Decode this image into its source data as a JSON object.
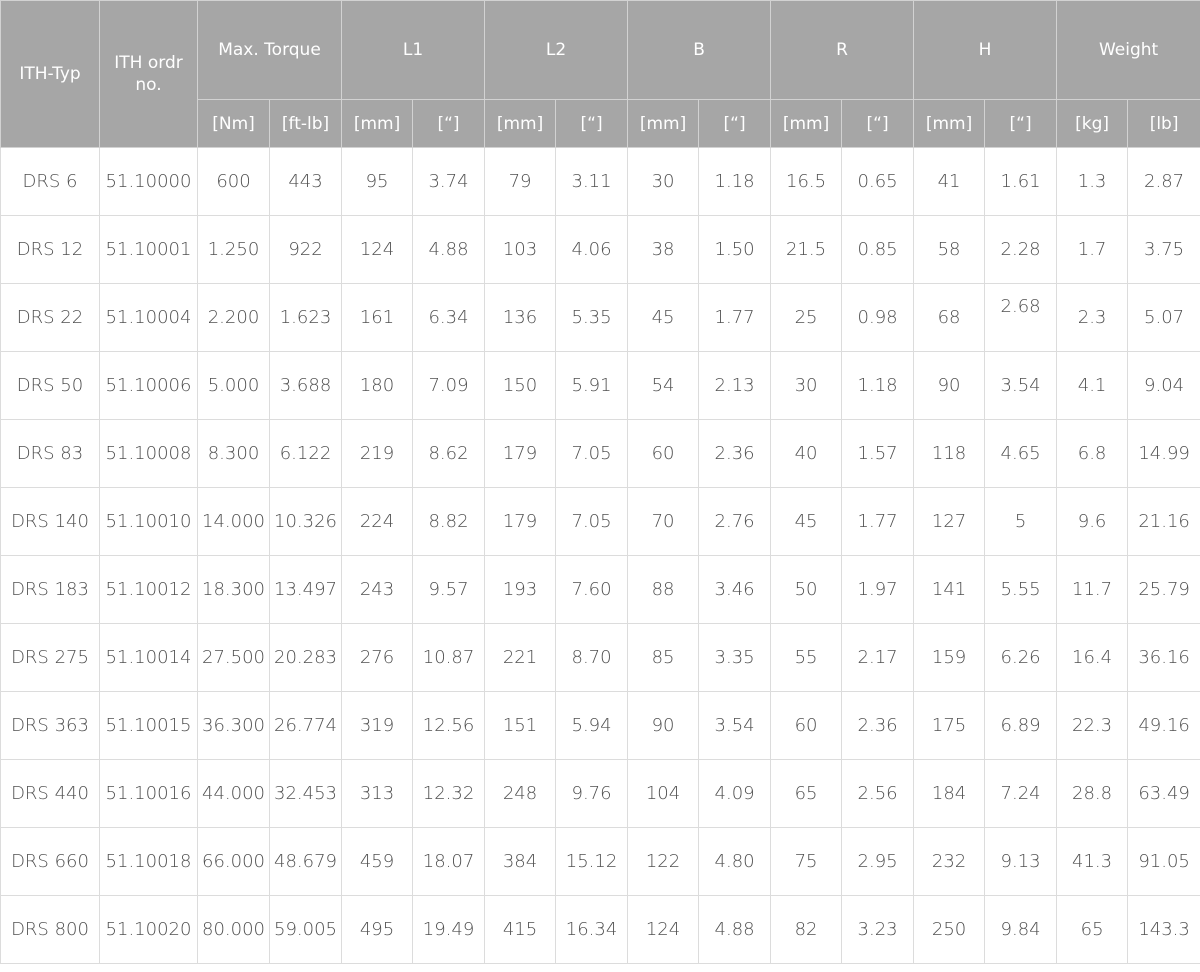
{
  "headers": {
    "ith_typ": "ITH-Typ",
    "ith_order": "ITH ordr no.",
    "max_torque": "Max. Torque",
    "l1": "L1",
    "l2": "L2",
    "b": "B",
    "r": "R",
    "h": "H",
    "weight": "Weight"
  },
  "units": [
    "[Nm]",
    "[ft-lb]",
    "[mm]",
    "[“]",
    "[mm]",
    "[“]",
    "[mm]",
    "[“]",
    "[mm]",
    "[“]",
    "[mm]",
    "[“]",
    "[kg]",
    "[lb]"
  ],
  "rows": [
    [
      "DRS 6",
      "51.10000",
      "600",
      "443",
      "95",
      "3.74",
      "79",
      "3.11",
      "30",
      "1.18",
      "16.5",
      "0.65",
      "41",
      "1.61",
      "1.3",
      "2.87"
    ],
    [
      "DRS 12",
      "51.10001",
      "1.250",
      "922",
      "124",
      "4.88",
      "103",
      "4.06",
      "38",
      "1.50",
      "21.5",
      "0.85",
      "58",
      "2.28",
      "1.7",
      "3.75"
    ],
    [
      "DRS 22",
      "51.10004",
      "2.200",
      "1.623",
      "161",
      "6.34",
      "136",
      "5.35",
      "45",
      "1.77",
      "25",
      "0.98",
      "68",
      "2.68",
      "2.3",
      "5.07"
    ],
    [
      "DRS 50",
      "51.10006",
      "5.000",
      "3.688",
      "180",
      "7.09",
      "150",
      "5.91",
      "54",
      "2.13",
      "30",
      "1.18",
      "90",
      "3.54",
      "4.1",
      "9.04"
    ],
    [
      "DRS 83",
      "51.10008",
      "8.300",
      "6.122",
      "219",
      "8.62",
      "179",
      "7.05",
      "60",
      "2.36",
      "40",
      "1.57",
      "118",
      "4.65",
      "6.8",
      "14.99"
    ],
    [
      "DRS 140",
      "51.10010",
      "14.000",
      "10.326",
      "224",
      "8.82",
      "179",
      "7.05",
      "70",
      "2.76",
      "45",
      "1.77",
      "127",
      "5",
      "9.6",
      "21.16"
    ],
    [
      "DRS 183",
      "51.10012",
      "18.300",
      "13.497",
      "243",
      "9.57",
      "193",
      "7.60",
      "88",
      "3.46",
      "50",
      "1.97",
      "141",
      "5.55",
      "11.7",
      "25.79"
    ],
    [
      "DRS 275",
      "51.10014",
      "27.500",
      "20.283",
      "276",
      "10.87",
      "221",
      "8.70",
      "85",
      "3.35",
      "55",
      "2.17",
      "159",
      "6.26",
      "16.4",
      "36.16"
    ],
    [
      "DRS 363",
      "51.10015",
      "36.300",
      "26.774",
      "319",
      "12.56",
      "151",
      "5.94",
      "90",
      "3.54",
      "60",
      "2.36",
      "175",
      "6.89",
      "22.3",
      "49.16"
    ],
    [
      "DRS 440",
      "51.10016",
      "44.000",
      "32.453",
      "313",
      "12.32",
      "248",
      "9.76",
      "104",
      "4.09",
      "65",
      "2.56",
      "184",
      "7.24",
      "28.8",
      "63.49"
    ],
    [
      "DRS 660",
      "51.10018",
      "66.000",
      "48.679",
      "459",
      "18.07",
      "384",
      "15.12",
      "122",
      "4.80",
      "75",
      "2.95",
      "232",
      "9.13",
      "41.3",
      "91.05"
    ],
    [
      "DRS 800",
      "51.10020",
      "80.000",
      "59.005",
      "495",
      "19.49",
      "415",
      "16.34",
      "124",
      "4.88",
      "82",
      "3.23",
      "250",
      "9.84",
      "65",
      "143.3"
    ]
  ]
}
